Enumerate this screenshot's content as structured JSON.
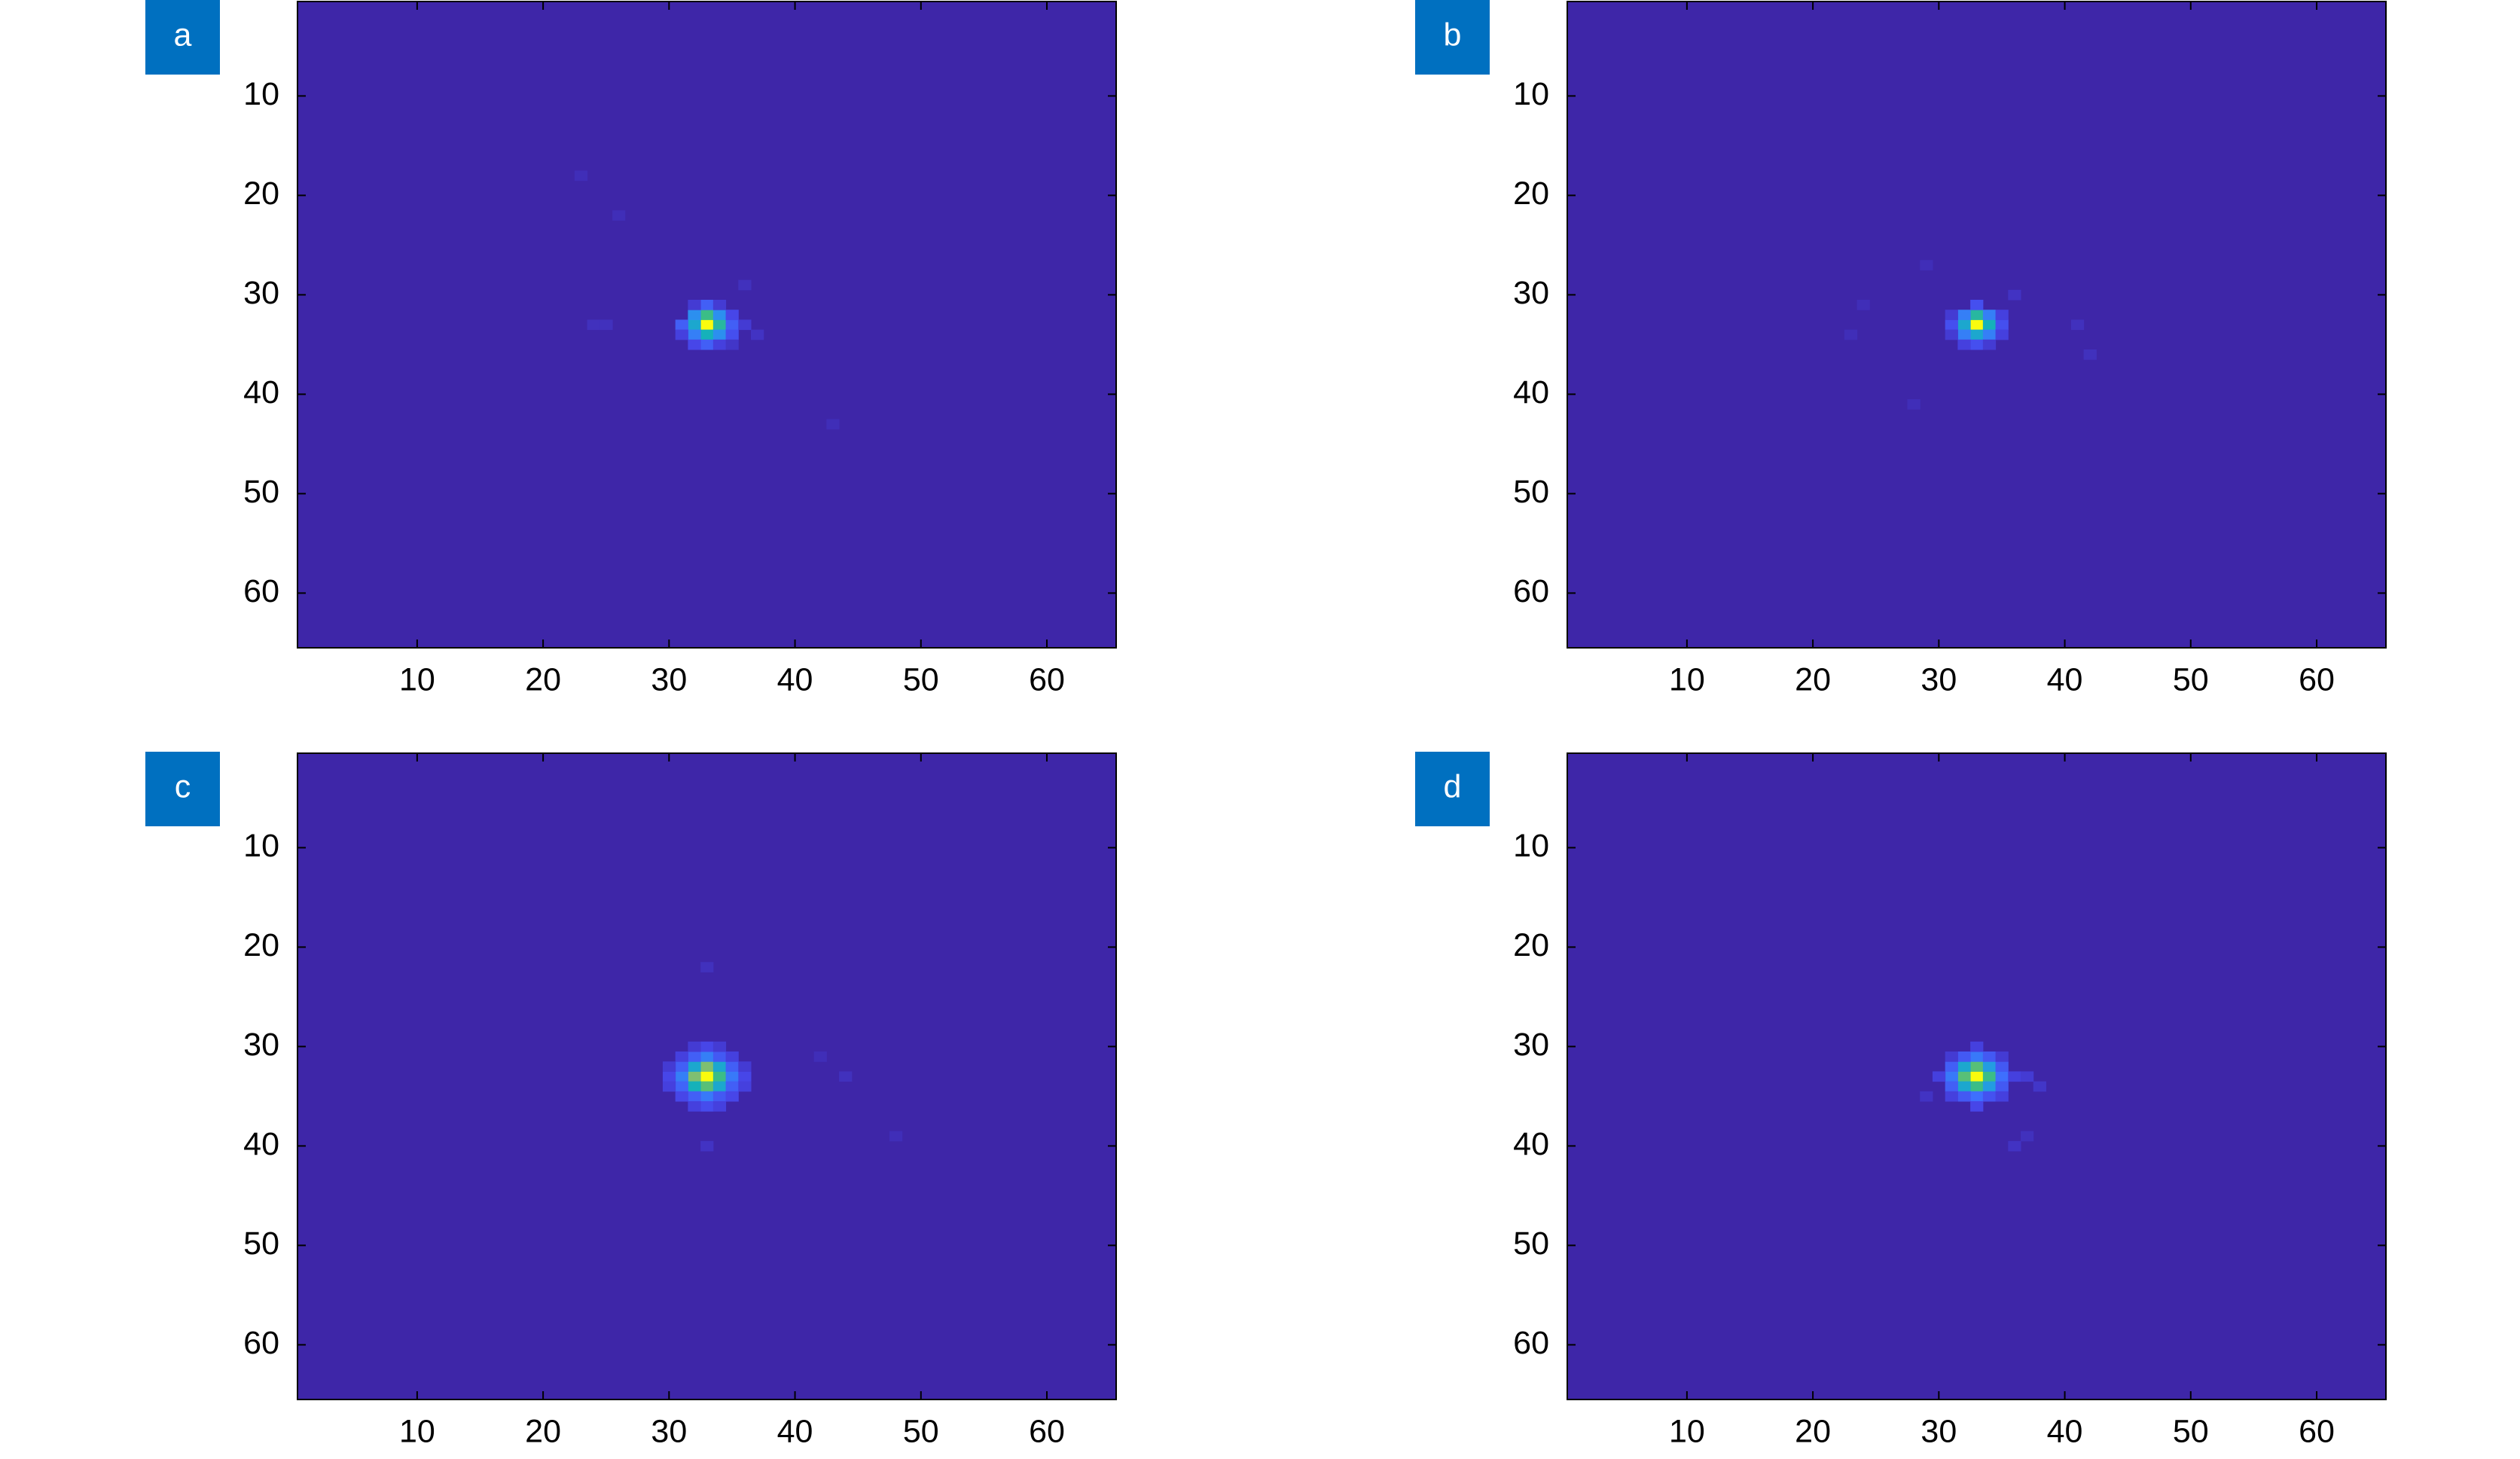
{
  "chart_data": [
    {
      "type": "heatmap",
      "label": "a",
      "xlim": [
        0.5,
        65.5
      ],
      "ylim": [
        65.5,
        0.5
      ],
      "xticks": [
        10,
        20,
        30,
        40,
        50,
        60
      ],
      "yticks": [
        10,
        20,
        30,
        40,
        50,
        60
      ],
      "clim": [
        0,
        1
      ],
      "colormap": [
        "#3e26a8",
        "#4747eb",
        "#3e6ffe",
        "#2797eb",
        "#15b1ba",
        "#45c07a",
        "#a5be6b",
        "#f1b93d",
        "#f9fb0e"
      ],
      "cells": [
        [
          33,
          33,
          1.0
        ],
        [
          34,
          33,
          0.55
        ],
        [
          32,
          33,
          0.45
        ],
        [
          33,
          32,
          0.6
        ],
        [
          33,
          34,
          0.5
        ],
        [
          32,
          32,
          0.35
        ],
        [
          34,
          32,
          0.35
        ],
        [
          32,
          34,
          0.3
        ],
        [
          34,
          34,
          0.35
        ],
        [
          35,
          33,
          0.2
        ],
        [
          31,
          33,
          0.2
        ],
        [
          33,
          31,
          0.2
        ],
        [
          33,
          35,
          0.2
        ],
        [
          35,
          34,
          0.15
        ],
        [
          35,
          32,
          0.12
        ],
        [
          31,
          34,
          0.1
        ],
        [
          32,
          35,
          0.12
        ],
        [
          34,
          35,
          0.1
        ],
        [
          32,
          31,
          0.08
        ],
        [
          34,
          31,
          0.08
        ],
        [
          36,
          33,
          0.08
        ],
        [
          35,
          35,
          0.06
        ],
        [
          36,
          29,
          0.04
        ],
        [
          24,
          33,
          0.04
        ],
        [
          25,
          33,
          0.04
        ],
        [
          23,
          18,
          0.03
        ],
        [
          26,
          22,
          0.03
        ],
        [
          43,
          43,
          0.03
        ],
        [
          37,
          34,
          0.05
        ]
      ]
    },
    {
      "type": "heatmap",
      "label": "b",
      "xlim": [
        0.5,
        65.5
      ],
      "ylim": [
        65.5,
        0.5
      ],
      "xticks": [
        10,
        20,
        30,
        40,
        50,
        60
      ],
      "yticks": [
        10,
        20,
        30,
        40,
        50,
        60
      ],
      "clim": [
        0,
        1
      ],
      "colormap": [
        "#3e26a8",
        "#4747eb",
        "#3e6ffe",
        "#2797eb",
        "#15b1ba",
        "#45c07a",
        "#a5be6b",
        "#f1b93d",
        "#f9fb0e"
      ],
      "cells": [
        [
          33,
          33,
          1.0
        ],
        [
          34,
          33,
          0.5
        ],
        [
          32,
          33,
          0.45
        ],
        [
          33,
          32,
          0.55
        ],
        [
          33,
          34,
          0.45
        ],
        [
          32,
          32,
          0.3
        ],
        [
          34,
          32,
          0.3
        ],
        [
          32,
          34,
          0.3
        ],
        [
          34,
          34,
          0.3
        ],
        [
          35,
          33,
          0.15
        ],
        [
          31,
          33,
          0.15
        ],
        [
          33,
          31,
          0.15
        ],
        [
          33,
          35,
          0.15
        ],
        [
          35,
          32,
          0.1
        ],
        [
          35,
          34,
          0.1
        ],
        [
          31,
          32,
          0.08
        ],
        [
          31,
          34,
          0.08
        ],
        [
          32,
          35,
          0.1
        ],
        [
          34,
          35,
          0.08
        ],
        [
          36,
          30,
          0.05
        ],
        [
          41,
          33,
          0.04
        ],
        [
          42,
          36,
          0.04
        ],
        [
          28,
          41,
          0.03
        ],
        [
          24,
          31,
          0.03
        ],
        [
          23,
          34,
          0.03
        ],
        [
          29,
          27,
          0.03
        ]
      ]
    },
    {
      "type": "heatmap",
      "label": "c",
      "xlim": [
        0.5,
        65.5
      ],
      "ylim": [
        65.5,
        0.5
      ],
      "xticks": [
        10,
        20,
        30,
        40,
        50,
        60
      ],
      "yticks": [
        10,
        20,
        30,
        40,
        50,
        60
      ],
      "clim": [
        0,
        1
      ],
      "colormap": [
        "#3e26a8",
        "#4747eb",
        "#3e6ffe",
        "#2797eb",
        "#15b1ba",
        "#45c07a",
        "#a5be6b",
        "#f1b93d",
        "#f9fb0e"
      ],
      "cells": [
        [
          33,
          33,
          1.0
        ],
        [
          32,
          33,
          0.7
        ],
        [
          34,
          33,
          0.6
        ],
        [
          33,
          32,
          0.7
        ],
        [
          33,
          34,
          0.65
        ],
        [
          32,
          32,
          0.45
        ],
        [
          34,
          32,
          0.45
        ],
        [
          32,
          34,
          0.5
        ],
        [
          34,
          34,
          0.45
        ],
        [
          31,
          33,
          0.3
        ],
        [
          35,
          33,
          0.28
        ],
        [
          33,
          31,
          0.3
        ],
        [
          33,
          35,
          0.28
        ],
        [
          31,
          32,
          0.2
        ],
        [
          31,
          34,
          0.22
        ],
        [
          35,
          32,
          0.2
        ],
        [
          35,
          34,
          0.2
        ],
        [
          32,
          31,
          0.2
        ],
        [
          34,
          31,
          0.18
        ],
        [
          32,
          35,
          0.2
        ],
        [
          34,
          35,
          0.18
        ],
        [
          30,
          33,
          0.12
        ],
        [
          36,
          33,
          0.12
        ],
        [
          33,
          30,
          0.12
        ],
        [
          33,
          36,
          0.14
        ],
        [
          30,
          32,
          0.08
        ],
        [
          30,
          34,
          0.1
        ],
        [
          36,
          32,
          0.08
        ],
        [
          36,
          34,
          0.1
        ],
        [
          32,
          30,
          0.08
        ],
        [
          34,
          30,
          0.08
        ],
        [
          32,
          36,
          0.1
        ],
        [
          34,
          36,
          0.1
        ],
        [
          31,
          35,
          0.12
        ],
        [
          35,
          35,
          0.12
        ],
        [
          31,
          31,
          0.1
        ],
        [
          35,
          31,
          0.1
        ],
        [
          33,
          22,
          0.04
        ],
        [
          33,
          40,
          0.05
        ],
        [
          44,
          33,
          0.04
        ],
        [
          48,
          39,
          0.03
        ],
        [
          42,
          31,
          0.03
        ]
      ]
    },
    {
      "type": "heatmap",
      "label": "d",
      "xlim": [
        0.5,
        65.5
      ],
      "ylim": [
        65.5,
        0.5
      ],
      "xticks": [
        10,
        20,
        30,
        40,
        50,
        60
      ],
      "yticks": [
        10,
        20,
        30,
        40,
        50,
        60
      ],
      "clim": [
        0,
        1
      ],
      "colormap": [
        "#3e26a8",
        "#4747eb",
        "#3e6ffe",
        "#2797eb",
        "#15b1ba",
        "#45c07a",
        "#a5be6b",
        "#f1b93d",
        "#f9fb0e"
      ],
      "cells": [
        [
          33,
          33,
          1.0
        ],
        [
          32,
          33,
          0.65
        ],
        [
          34,
          33,
          0.6
        ],
        [
          33,
          32,
          0.65
        ],
        [
          33,
          34,
          0.6
        ],
        [
          32,
          32,
          0.45
        ],
        [
          34,
          32,
          0.4
        ],
        [
          32,
          34,
          0.45
        ],
        [
          34,
          34,
          0.4
        ],
        [
          31,
          33,
          0.28
        ],
        [
          35,
          33,
          0.25
        ],
        [
          33,
          31,
          0.28
        ],
        [
          33,
          35,
          0.25
        ],
        [
          31,
          32,
          0.2
        ],
        [
          31,
          34,
          0.2
        ],
        [
          35,
          32,
          0.18
        ],
        [
          35,
          34,
          0.18
        ],
        [
          32,
          31,
          0.18
        ],
        [
          34,
          31,
          0.18
        ],
        [
          32,
          35,
          0.18
        ],
        [
          34,
          35,
          0.16
        ],
        [
          30,
          33,
          0.1
        ],
        [
          36,
          33,
          0.1
        ],
        [
          33,
          30,
          0.1
        ],
        [
          33,
          36,
          0.12
        ],
        [
          31,
          35,
          0.1
        ],
        [
          35,
          35,
          0.1
        ],
        [
          31,
          31,
          0.08
        ],
        [
          35,
          31,
          0.08
        ],
        [
          37,
          33,
          0.08
        ],
        [
          38,
          34,
          0.06
        ],
        [
          36,
          40,
          0.05
        ],
        [
          37,
          39,
          0.04
        ],
        [
          29,
          35,
          0.05
        ]
      ]
    }
  ]
}
